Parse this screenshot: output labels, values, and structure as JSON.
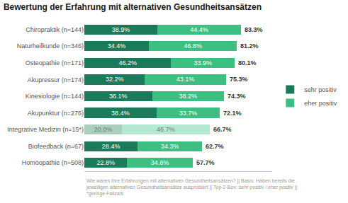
{
  "chart_data": {
    "type": "bar",
    "orientation": "horizontal",
    "stacked": true,
    "title": "Bewertung der Erfahrung mit alternativen Gesundheitsansätzen",
    "categories": [
      "Chiropraktik (n=144)",
      "Naturheilkunde (n=346)",
      "Osteopathie (n=171)",
      "Akupressur (n=174)",
      "Kinesiologie (n=144)",
      "Akupunktur (n=276)",
      "Integrative Medizin (n=15*)",
      "Biofeedback (n=67)",
      "Homöopathie (n=508)"
    ],
    "series": [
      {
        "name": "sehr positiv",
        "color": "#1b7a5a",
        "colors": [
          "#1b7a5a",
          "#1b7a5a",
          "#1b7a5a",
          "#1b7a5a",
          "#1b7a5a",
          "#1b7a5a",
          "#aacfbe",
          "#1b7a5a",
          "#1b7a5a"
        ],
        "values": [
          38.9,
          34.4,
          46.2,
          32.2,
          36.1,
          38.4,
          20.0,
          28.4,
          22.8
        ],
        "value_labels": [
          "38.9%",
          "34.4%",
          "46.2%",
          "32.2%",
          "36.1%",
          "38.4%",
          "20.0%",
          "28.4%",
          "22.8%"
        ]
      },
      {
        "name": "eher positiv",
        "color": "#3dbf82",
        "colors": [
          "#3dbf82",
          "#3dbf82",
          "#3dbf82",
          "#3dbf82",
          "#3dbf82",
          "#3dbf82",
          "#b5e8d0",
          "#3dbf82",
          "#3dbf82"
        ],
        "values": [
          44.4,
          46.8,
          33.9,
          43.1,
          38.2,
          33.7,
          46.7,
          34.3,
          34.8
        ],
        "value_labels": [
          "44.4%",
          "46.8%",
          "33.9%",
          "43.1%",
          "38.2%",
          "33.7%",
          "46.7%",
          "34.3%",
          "34.8%"
        ]
      }
    ],
    "totals": [
      83.3,
      81.2,
      80.1,
      75.3,
      74.3,
      72.1,
      66.7,
      62.7,
      57.7
    ],
    "total_labels": [
      "83.3%",
      "81.2%",
      "80.1%",
      "75.3%",
      "74.3%",
      "72.1%",
      "66.7%",
      "62.7%",
      "57.7%"
    ],
    "footnote": "Wie waren Ihre Erfahrungen mit alternativen Gesundheitsansätzen? || Basis: Haben bereits die jeweiligen alternativen Gesundheitsansätze ausprobiert || Top-2-Box: sehr positiv / eher positiv || *geringe Fallzahl",
    "xlim": [
      0,
      100
    ],
    "tick_labels": "y",
    "grid": false,
    "legend": "right",
    "data_labels": true
  }
}
